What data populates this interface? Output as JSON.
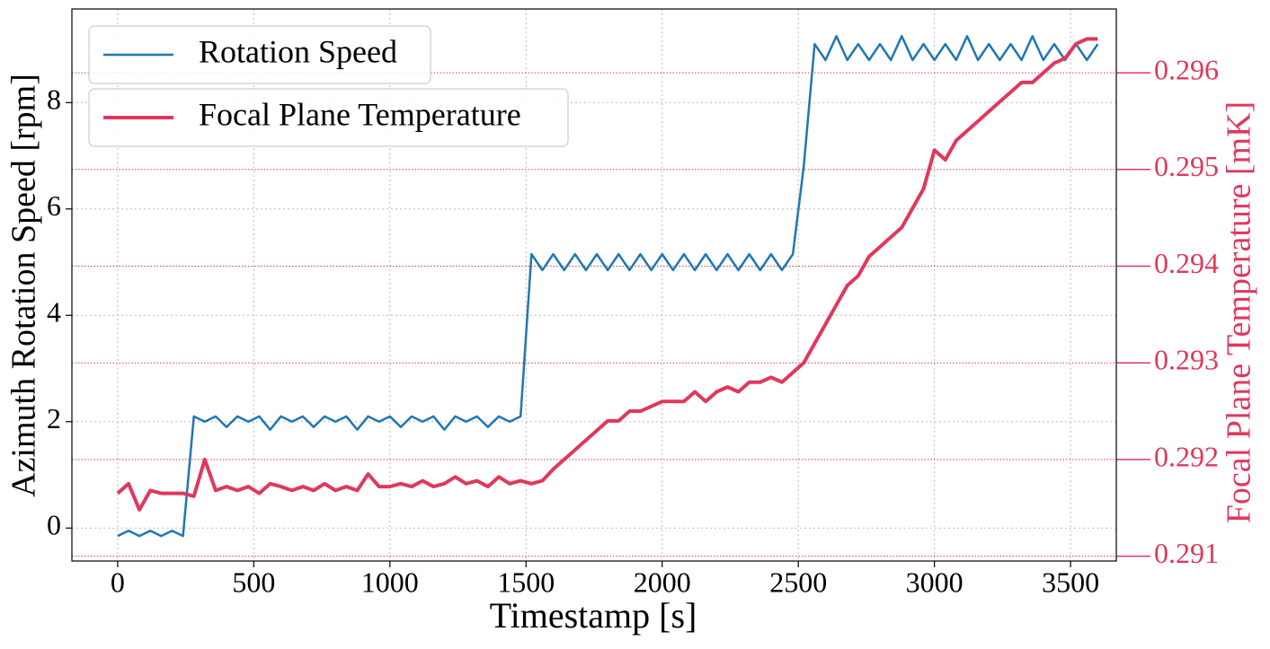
{
  "chart_data": {
    "type": "line",
    "xlabel": "Timestamp [s]",
    "ylabel": "Azimuth Rotation Speed [rpm]",
    "y2label": "Focal Plane Temperature [mK]",
    "x": [
      0,
      40,
      80,
      120,
      160,
      200,
      240,
      280,
      320,
      360,
      400,
      440,
      480,
      520,
      560,
      600,
      640,
      680,
      720,
      760,
      800,
      840,
      880,
      920,
      960,
      1000,
      1040,
      1080,
      1120,
      1160,
      1200,
      1240,
      1280,
      1320,
      1360,
      1400,
      1440,
      1480,
      1520,
      1560,
      1600,
      1640,
      1680,
      1720,
      1760,
      1800,
      1840,
      1880,
      1920,
      1960,
      2000,
      2040,
      2080,
      2120,
      2160,
      2200,
      2240,
      2280,
      2320,
      2360,
      2400,
      2440,
      2480,
      2520,
      2560,
      2600,
      2640,
      2680,
      2720,
      2760,
      2800,
      2840,
      2880,
      2920,
      2960,
      3000,
      3040,
      3080,
      3120,
      3160,
      3200,
      3240,
      3280,
      3320,
      3360,
      3400,
      3440,
      3480,
      3520,
      3560,
      3600
    ],
    "series": [
      {
        "name": "Rotation Speed",
        "color": "#1f77b4",
        "axis": "y",
        "values": [
          -0.15,
          -0.05,
          -0.15,
          -0.05,
          -0.15,
          -0.05,
          -0.15,
          2.1,
          2.0,
          2.1,
          1.9,
          2.1,
          2.0,
          2.1,
          1.85,
          2.1,
          2.0,
          2.1,
          1.9,
          2.1,
          2.0,
          2.1,
          1.85,
          2.1,
          2.0,
          2.1,
          1.9,
          2.1,
          2.0,
          2.1,
          1.85,
          2.1,
          2.0,
          2.1,
          1.9,
          2.1,
          2.0,
          2.1,
          5.15,
          4.85,
          5.15,
          4.85,
          5.15,
          4.85,
          5.15,
          4.85,
          5.15,
          4.85,
          5.15,
          4.85,
          5.15,
          4.85,
          5.15,
          4.85,
          5.15,
          4.85,
          5.15,
          4.85,
          5.15,
          4.85,
          5.15,
          4.85,
          5.15,
          6.8,
          9.1,
          8.8,
          9.25,
          8.8,
          9.1,
          8.8,
          9.1,
          8.8,
          9.25,
          8.8,
          9.1,
          8.8,
          9.1,
          8.8,
          9.25,
          8.8,
          9.1,
          8.8,
          9.1,
          8.8,
          9.25,
          8.8,
          9.1,
          8.8,
          9.1,
          8.8,
          9.1
        ]
      },
      {
        "name": "Focal Plane Temperature",
        "color": "#e0385c",
        "axis": "y2",
        "values": [
          0.29165,
          0.29175,
          0.29148,
          0.29168,
          0.29165,
          0.29165,
          0.29165,
          0.29162,
          0.292,
          0.29168,
          0.29172,
          0.29168,
          0.29172,
          0.29165,
          0.29175,
          0.29172,
          0.29168,
          0.29172,
          0.29168,
          0.29175,
          0.29168,
          0.29172,
          0.29168,
          0.29185,
          0.29172,
          0.29172,
          0.29175,
          0.29172,
          0.29178,
          0.29172,
          0.29175,
          0.29182,
          0.29175,
          0.29178,
          0.29172,
          0.29182,
          0.29175,
          0.29178,
          0.29175,
          0.29178,
          0.2919,
          0.292,
          0.2921,
          0.2922,
          0.2923,
          0.2924,
          0.2924,
          0.2925,
          0.2925,
          0.29255,
          0.2926,
          0.2926,
          0.2926,
          0.2927,
          0.2926,
          0.2927,
          0.29275,
          0.2927,
          0.2928,
          0.2928,
          0.29285,
          0.2928,
          0.2929,
          0.293,
          0.2932,
          0.2934,
          0.2936,
          0.2938,
          0.2939,
          0.2941,
          0.2942,
          0.2943,
          0.2944,
          0.2946,
          0.2948,
          0.2952,
          0.2951,
          0.2953,
          0.2954,
          0.2955,
          0.2956,
          0.2957,
          0.2958,
          0.2959,
          0.2959,
          0.296,
          0.2961,
          0.29615,
          0.2963,
          0.29635,
          0.29635
        ]
      }
    ],
    "xlim": [
      -168,
      3668
    ],
    "xticks": [
      0,
      500,
      1000,
      1500,
      2000,
      2500,
      3000,
      3500
    ],
    "ylim": [
      -0.62,
      9.76
    ],
    "yticks": [
      0,
      2,
      4,
      6,
      8
    ],
    "y2lim": [
      0.29095,
      0.29666
    ],
    "y2ticks": [
      0.291,
      0.292,
      0.293,
      0.294,
      0.295,
      0.296
    ],
    "grid": true,
    "legend": "upper left"
  }
}
